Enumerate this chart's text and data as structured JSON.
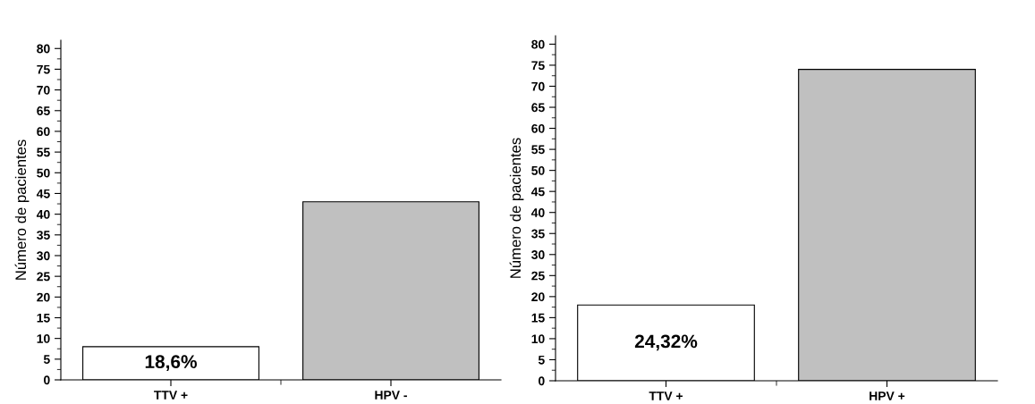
{
  "chart_data": [
    {
      "type": "bar",
      "ylabel": "Número de pacientes",
      "categories": [
        "TTV +",
        "HPV -"
      ],
      "values": [
        8,
        43
      ],
      "colors": [
        "#ffffff",
        "#c0c0c0"
      ],
      "ylim": [
        0,
        82
      ],
      "yticks": [
        0,
        5,
        10,
        15,
        20,
        25,
        30,
        35,
        40,
        45,
        50,
        55,
        60,
        65,
        70,
        75,
        80
      ],
      "grid": false,
      "annotations": [
        "18,6%"
      ]
    },
    {
      "type": "bar",
      "ylabel": "Número de pacientes",
      "categories": [
        "TTV +",
        "HPV +"
      ],
      "values": [
        18,
        74
      ],
      "colors": [
        "#ffffff",
        "#c0c0c0"
      ],
      "ylim": [
        0,
        82
      ],
      "yticks": [
        0,
        5,
        10,
        15,
        20,
        25,
        30,
        35,
        40,
        45,
        50,
        55,
        60,
        65,
        70,
        75,
        80
      ],
      "grid": false,
      "annotations": [
        "24,32%"
      ]
    }
  ]
}
